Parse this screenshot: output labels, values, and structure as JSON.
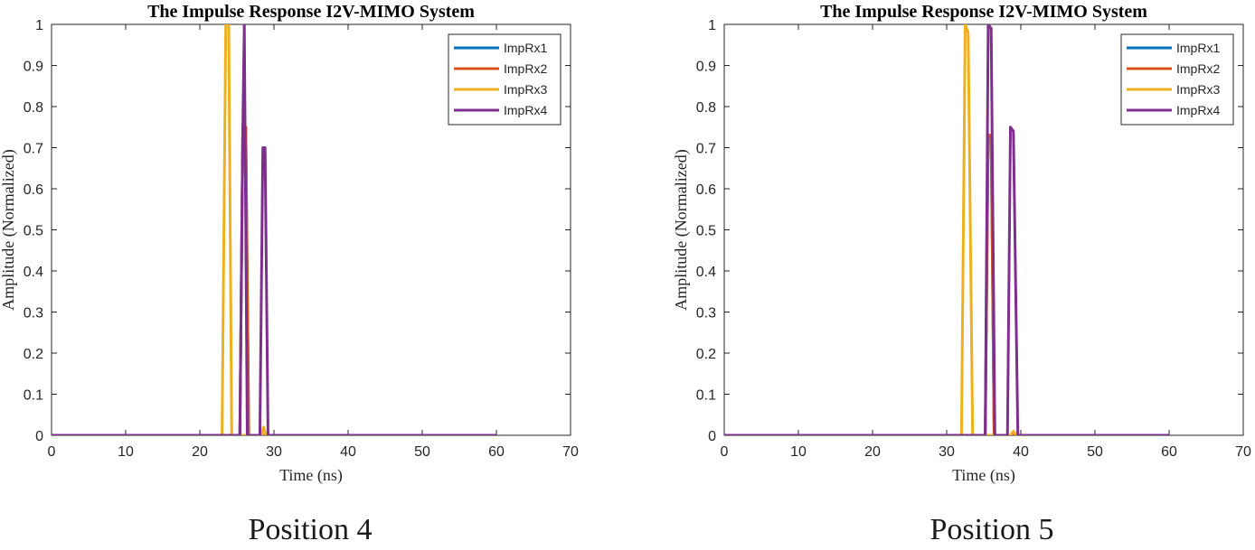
{
  "chart_data": [
    {
      "type": "line",
      "title": "The Impulse Response I2V-MIMO System",
      "xlabel": "Time (ns)",
      "ylabel": "Amplitude (Normalized)",
      "caption": "Position 4",
      "xlim": [
        0,
        70
      ],
      "ylim": [
        0,
        1
      ],
      "xticks": [
        0,
        10,
        20,
        30,
        40,
        50,
        60,
        70
      ],
      "yticks": [
        0,
        0.1,
        0.2,
        0.3,
        0.4,
        0.5,
        0.6,
        0.7,
        0.8,
        0.9,
        1
      ],
      "grid": false,
      "legend_position": "top-right",
      "series": [
        {
          "name": "ImpRx1",
          "color": "#0072BD",
          "x": [
            0,
            25.4,
            25.8,
            26.2,
            26.6,
            60
          ],
          "y": [
            0,
            0,
            0.75,
            0.75,
            0,
            0
          ]
        },
        {
          "name": "ImpRx2",
          "color": "#D95319",
          "x": [
            0,
            25.4,
            25.8,
            26.2,
            26.6,
            60
          ],
          "y": [
            0,
            0,
            0.75,
            0.75,
            0,
            0
          ]
        },
        {
          "name": "ImpRx3",
          "color": "#EDB120",
          "x": [
            0,
            23.0,
            23.5,
            23.9,
            24.3,
            28.3,
            28.6,
            28.9,
            60
          ],
          "y": [
            0,
            0,
            1.0,
            1.0,
            0,
            0,
            0.02,
            0,
            0
          ]
        },
        {
          "name": "ImpRx4",
          "color": "#7E2F8E",
          "x": [
            0,
            25.4,
            25.8,
            26.0,
            26.4,
            28.1,
            28.5,
            28.8,
            29.2,
            60
          ],
          "y": [
            0,
            0,
            0.75,
            1.0,
            0,
            0,
            0.7,
            0.7,
            0,
            0
          ]
        }
      ]
    },
    {
      "type": "line",
      "title": "The Impulse Response I2V-MIMO System",
      "xlabel": "Time (ns)",
      "ylabel": "Amplitude (Normalized)",
      "caption": "Position 5",
      "xlim": [
        0,
        70
      ],
      "ylim": [
        0,
        1
      ],
      "xticks": [
        0,
        10,
        20,
        30,
        40,
        50,
        60,
        70
      ],
      "yticks": [
        0,
        0.1,
        0.2,
        0.3,
        0.4,
        0.5,
        0.6,
        0.7,
        0.8,
        0.9,
        1
      ],
      "grid": false,
      "legend_position": "top-right",
      "series": [
        {
          "name": "ImpRx1",
          "color": "#0072BD",
          "x": [
            0,
            35.2,
            35.6,
            36.0,
            36.4,
            60
          ],
          "y": [
            0,
            0,
            0.73,
            0.73,
            0,
            0
          ]
        },
        {
          "name": "ImpRx2",
          "color": "#D95319",
          "x": [
            0,
            35.2,
            35.6,
            36.0,
            36.4,
            60
          ],
          "y": [
            0,
            0,
            0.73,
            0.73,
            0,
            0
          ]
        },
        {
          "name": "ImpRx3",
          "color": "#EDB120",
          "x": [
            0,
            32.0,
            32.5,
            32.9,
            33.5,
            38.6,
            39.0,
            39.4,
            60
          ],
          "y": [
            0,
            0,
            1.0,
            0.98,
            0,
            0,
            0.01,
            0,
            0
          ]
        },
        {
          "name": "ImpRx4",
          "color": "#7E2F8E",
          "x": [
            0,
            35.2,
            35.6,
            36.0,
            36.5,
            38.2,
            38.6,
            39.0,
            39.6,
            60
          ],
          "y": [
            0,
            0,
            1.0,
            0.99,
            0,
            0,
            0.75,
            0.74,
            0,
            0
          ]
        }
      ]
    }
  ]
}
